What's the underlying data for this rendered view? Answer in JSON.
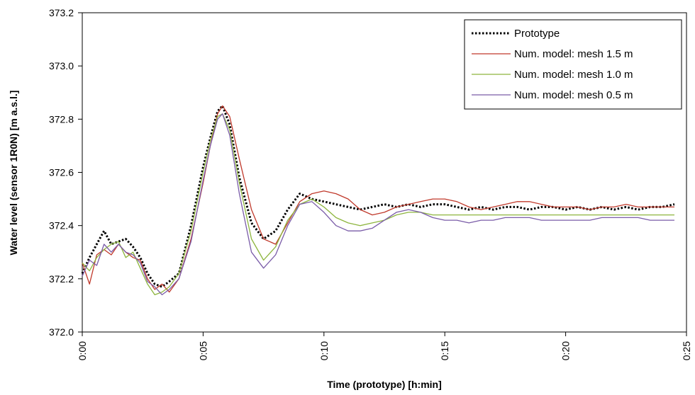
{
  "chart_data": {
    "type": "line",
    "title": "",
    "xlabel": "Time (prototype)  [h:min]",
    "ylabel": "Water level (sensor 1R0N)  [m a.s.l.]",
    "xlim": [
      0,
      25
    ],
    "ylim": [
      372.0,
      373.2
    ],
    "x_ticks": [
      0,
      5,
      10,
      15,
      20,
      25
    ],
    "x_tick_labels": [
      "0:00",
      "0:05",
      "0:10",
      "0:15",
      "0:20",
      "0:25"
    ],
    "y_ticks": [
      372.0,
      372.2,
      372.4,
      372.6,
      372.8,
      373.0,
      373.2
    ],
    "y_tick_labels": [
      "372.0",
      "372.2",
      "372.4",
      "372.6",
      "372.8",
      "373.0",
      "373.2"
    ],
    "grid": false,
    "legend_position": "top-right",
    "series": [
      {
        "name": "Prototype",
        "color": "#000000",
        "dashed": true,
        "x": [
          0,
          0.3,
          0.6,
          0.9,
          1.2,
          1.5,
          1.8,
          2.1,
          2.4,
          2.7,
          3.0,
          3.3,
          3.6,
          4.0,
          4.5,
          5.0,
          5.3,
          5.6,
          5.8,
          6.1,
          6.5,
          7.0,
          7.5,
          8.0,
          8.5,
          9.0,
          9.5,
          10.0,
          10.5,
          11.0,
          11.5,
          12.0,
          12.5,
          13.0,
          13.5,
          14.0,
          14.5,
          15.0,
          15.5,
          16.0,
          16.5,
          17.0,
          17.5,
          18.0,
          18.5,
          19.0,
          19.5,
          20.0,
          20.5,
          21.0,
          21.5,
          22.0,
          22.5,
          23.0,
          23.5,
          24.0,
          24.5
        ],
        "y": [
          372.22,
          372.28,
          372.33,
          372.38,
          372.33,
          372.34,
          372.35,
          372.32,
          372.28,
          372.22,
          372.18,
          372.17,
          372.19,
          372.22,
          372.4,
          372.62,
          372.73,
          372.83,
          372.85,
          372.78,
          372.58,
          372.41,
          372.35,
          372.38,
          372.46,
          372.52,
          372.5,
          372.49,
          372.48,
          372.47,
          372.46,
          372.47,
          372.48,
          372.47,
          372.48,
          372.47,
          372.48,
          372.48,
          372.47,
          372.46,
          372.47,
          372.46,
          372.47,
          372.47,
          372.46,
          372.47,
          372.47,
          372.46,
          372.47,
          372.46,
          372.47,
          372.46,
          372.47,
          372.46,
          372.47,
          372.47,
          372.48
        ]
      },
      {
        "name": "Num. model: mesh 1.5 m",
        "color": "#c0392b",
        "dashed": false,
        "x": [
          0,
          0.3,
          0.6,
          0.9,
          1.2,
          1.5,
          1.8,
          2.1,
          2.4,
          2.7,
          3.0,
          3.3,
          3.6,
          4.0,
          4.5,
          5.0,
          5.3,
          5.6,
          5.8,
          6.1,
          6.5,
          7.0,
          7.5,
          8.0,
          8.5,
          9.0,
          9.5,
          10.0,
          10.5,
          11.0,
          11.5,
          12.0,
          12.5,
          13.0,
          13.5,
          14.0,
          14.5,
          15.0,
          15.5,
          16.0,
          16.5,
          17.0,
          17.5,
          18.0,
          18.5,
          19.0,
          19.5,
          20.0,
          20.5,
          21.0,
          21.5,
          22.0,
          22.5,
          23.0,
          23.5,
          24.0,
          24.5
        ],
        "y": [
          372.26,
          372.18,
          372.29,
          372.31,
          372.29,
          372.33,
          372.3,
          372.28,
          372.27,
          372.2,
          372.16,
          372.18,
          372.15,
          372.2,
          372.35,
          372.56,
          372.7,
          372.82,
          372.85,
          372.81,
          372.65,
          372.46,
          372.35,
          372.33,
          372.41,
          372.49,
          372.52,
          372.53,
          372.52,
          372.5,
          372.46,
          372.44,
          372.45,
          372.47,
          372.48,
          372.49,
          372.5,
          372.5,
          372.49,
          372.47,
          372.46,
          372.47,
          372.48,
          372.49,
          372.49,
          372.48,
          372.47,
          372.47,
          372.47,
          372.46,
          372.47,
          372.47,
          372.48,
          372.47,
          372.47,
          372.47,
          372.47
        ]
      },
      {
        "name": "Num. model: mesh 1.0 m",
        "color": "#8db53e",
        "dashed": false,
        "x": [
          0,
          0.3,
          0.6,
          0.9,
          1.2,
          1.5,
          1.8,
          2.1,
          2.4,
          2.7,
          3.0,
          3.3,
          3.6,
          4.0,
          4.5,
          5.0,
          5.3,
          5.6,
          5.8,
          6.1,
          6.5,
          7.0,
          7.5,
          8.0,
          8.5,
          9.0,
          9.5,
          10.0,
          10.5,
          11.0,
          11.5,
          12.0,
          12.5,
          13.0,
          13.5,
          14.0,
          14.5,
          15.0,
          15.5,
          16.0,
          16.5,
          17.0,
          17.5,
          18.0,
          18.5,
          19.0,
          19.5,
          20.0,
          20.5,
          21.0,
          21.5,
          22.0,
          22.5,
          23.0,
          23.5,
          24.0,
          24.5
        ],
        "y": [
          372.26,
          372.23,
          372.28,
          372.31,
          372.33,
          372.34,
          372.28,
          372.3,
          372.24,
          372.18,
          372.14,
          372.15,
          372.17,
          372.22,
          372.38,
          372.6,
          372.72,
          372.81,
          372.82,
          372.76,
          372.56,
          372.35,
          372.27,
          372.32,
          372.42,
          372.48,
          372.5,
          372.47,
          372.43,
          372.41,
          372.4,
          372.41,
          372.42,
          372.44,
          372.45,
          372.45,
          372.44,
          372.44,
          372.44,
          372.44,
          372.44,
          372.44,
          372.44,
          372.44,
          372.44,
          372.44,
          372.44,
          372.44,
          372.44,
          372.44,
          372.44,
          372.44,
          372.44,
          372.44,
          372.44,
          372.44,
          372.44
        ]
      },
      {
        "name": "Num. model: mesh 0.5 m",
        "color": "#7a5ca8",
        "dashed": false,
        "x": [
          0,
          0.3,
          0.6,
          0.9,
          1.2,
          1.5,
          1.8,
          2.1,
          2.4,
          2.7,
          3.0,
          3.3,
          3.6,
          4.0,
          4.5,
          5.0,
          5.3,
          5.6,
          5.8,
          6.1,
          6.5,
          7.0,
          7.5,
          8.0,
          8.5,
          9.0,
          9.5,
          10.0,
          10.5,
          11.0,
          11.5,
          12.0,
          12.5,
          13.0,
          13.5,
          14.0,
          14.5,
          15.0,
          15.5,
          16.0,
          16.5,
          17.0,
          17.5,
          18.0,
          18.5,
          19.0,
          19.5,
          20.0,
          20.5,
          21.0,
          21.5,
          22.0,
          22.5,
          23.0,
          23.5,
          24.0,
          24.5
        ],
        "y": [
          372.21,
          372.27,
          372.25,
          372.33,
          372.3,
          372.33,
          372.3,
          372.29,
          372.26,
          372.19,
          372.17,
          372.14,
          372.16,
          372.2,
          372.34,
          372.57,
          372.7,
          372.8,
          372.82,
          372.74,
          372.52,
          372.3,
          372.24,
          372.29,
          372.4,
          372.48,
          372.49,
          372.45,
          372.4,
          372.38,
          372.38,
          372.39,
          372.42,
          372.45,
          372.46,
          372.45,
          372.43,
          372.42,
          372.42,
          372.41,
          372.42,
          372.42,
          372.43,
          372.43,
          372.43,
          372.42,
          372.42,
          372.42,
          372.42,
          372.42,
          372.43,
          372.43,
          372.43,
          372.43,
          372.42,
          372.42,
          372.42
        ]
      }
    ]
  }
}
